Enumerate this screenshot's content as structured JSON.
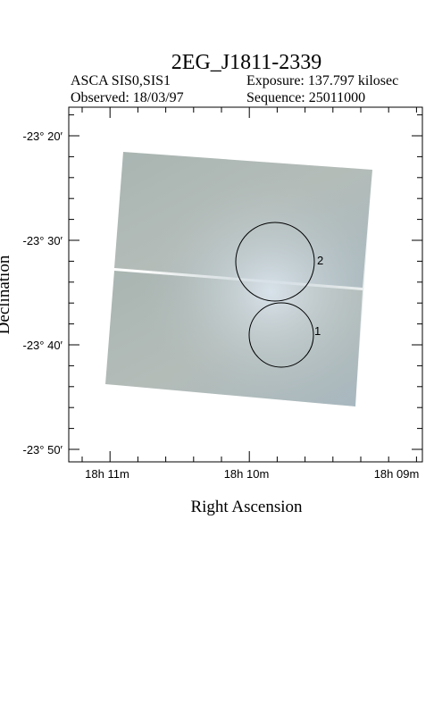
{
  "title": "2EG_J1811-2339",
  "header": {
    "instrument": "ASCA SIS0,SIS1",
    "exposure": "Exposure: 137.797 kilosec",
    "observed": "Observed: 18/03/97",
    "sequence": "Sequence: 25011000"
  },
  "axes": {
    "x_label": "Right Ascension",
    "y_label": "Declination",
    "y_ticks": [
      "-23° 20′",
      "-23° 30′",
      "-23° 40′",
      "-23° 50′"
    ],
    "x_ticks": [
      "18h 11m",
      "18h 10m",
      "18h 09m"
    ]
  },
  "regions": [
    "2",
    "1"
  ]
}
